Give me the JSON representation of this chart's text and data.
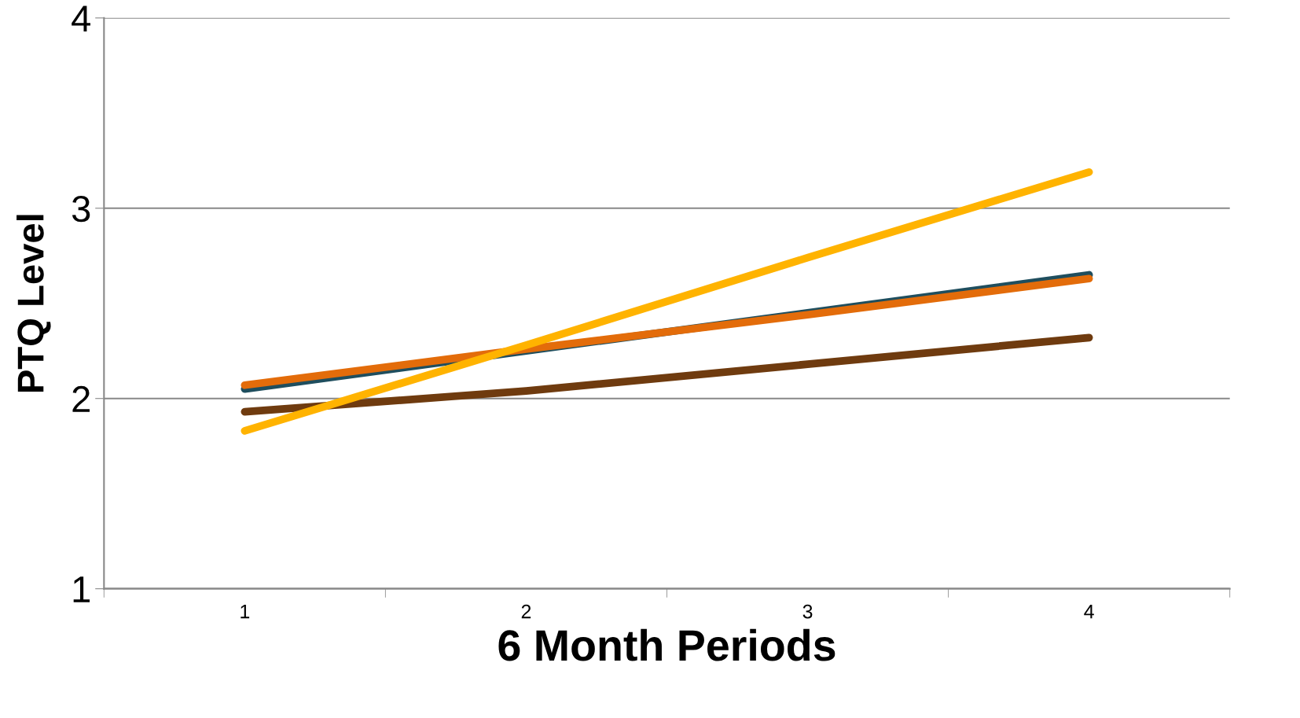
{
  "chart_data": {
    "type": "line",
    "xlabel": "6 Month Periods",
    "ylabel": "PTQ Level",
    "categories": [
      "1",
      "2",
      "3",
      "4"
    ],
    "series": [
      {
        "color": "#1f4e5e",
        "values": [
          2.05,
          2.25,
          2.45,
          2.65
        ]
      },
      {
        "color": "#e36c0a",
        "values": [
          2.07,
          2.26,
          2.44,
          2.63
        ]
      },
      {
        "color": "#6f3b0f",
        "values": [
          1.93,
          2.04,
          2.18,
          2.32
        ]
      },
      {
        "color": "#ffb300",
        "values": [
          1.83,
          2.28,
          2.74,
          3.19
        ]
      }
    ],
    "ylim": [
      1,
      4
    ],
    "yticks": [
      1,
      2,
      3,
      4
    ],
    "grid": "y",
    "line_style": "solid",
    "marker": "none"
  }
}
